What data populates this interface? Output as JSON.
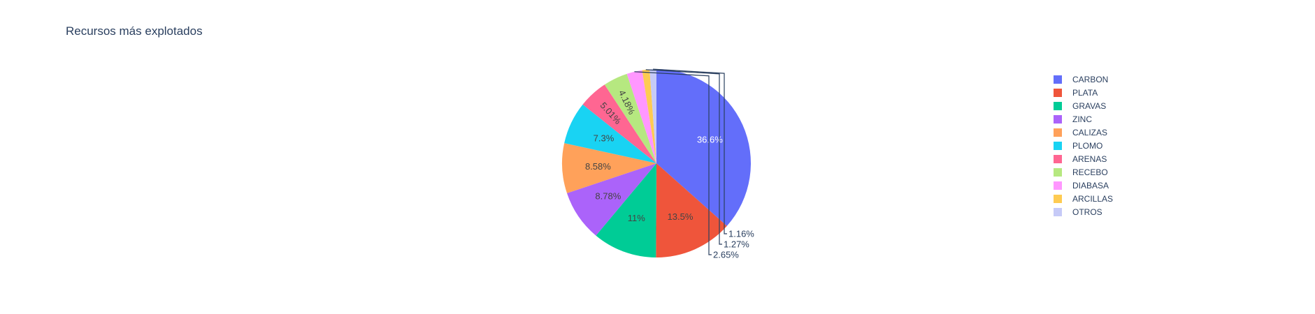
{
  "chart_data": {
    "type": "pie",
    "title": "Recursos más explotados",
    "legend_position": "right",
    "direction": "clockwise",
    "categories": [
      "CARBON",
      "PLATA",
      "GRAVAS",
      "ZINC",
      "CALIZAS",
      "PLOMO",
      "ARENAS",
      "RECEBO",
      "DIABASA",
      "ARCILLAS",
      "OTROS"
    ],
    "values": [
      36.6,
      13.5,
      11,
      8.78,
      8.58,
      7.3,
      5.01,
      4.18,
      2.65,
      1.27,
      1.16
    ],
    "labels": [
      "36.6%",
      "13.5%",
      "11%",
      "8.78%",
      "8.58%",
      "7.3%",
      "5.01%",
      "4.18%",
      "2.65%",
      "1.27%",
      "1.16%"
    ],
    "colors": [
      "#636efa",
      "#ef553b",
      "#00cc96",
      "#ab63fa",
      "#ffa15a",
      "#19d3f3",
      "#ff6692",
      "#b6e880",
      "#ff97ff",
      "#fecb52",
      "#c6caf7"
    ]
  }
}
